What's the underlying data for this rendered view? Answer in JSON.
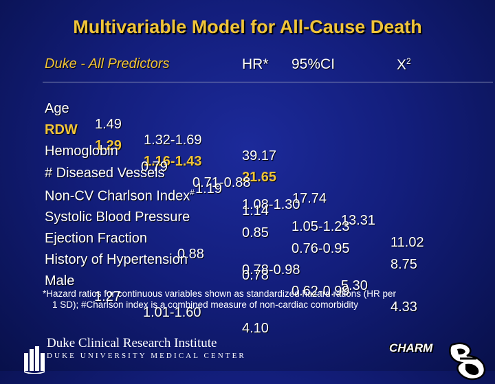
{
  "slide": {
    "title": "Multivariable Model for All-Cause Death",
    "header": {
      "label": "Duke - All Predictors",
      "hr": "HR*",
      "ci": "95%CI",
      "chi_base": "X",
      "chi_sup": "2"
    },
    "rows": [
      {
        "name": "Age",
        "hr": "1.49",
        "ci": "1.32-1.69",
        "chi2": "39.17",
        "highlight": false
      },
      {
        "name": "RDW",
        "hr": "1.29",
        "ci": "1.16-1.43",
        "chi2": "21.65",
        "highlight": true
      },
      {
        "name": "Hemoglobin",
        "hr": "0.79",
        "ci": "0.71-0.88",
        "chi2": "17.74",
        "highlight": false
      },
      {
        "name": "# Diseased Vessels",
        "hr": "1.19",
        "ci": "1.08-1.30",
        "chi2": "13.31",
        "highlight": false
      },
      {
        "name": "Non-CV Charlson Index",
        "name_sup": "#",
        "hr": "1.14",
        "ci": "1.05-1.23",
        "chi2": "11.02",
        "highlight": false
      },
      {
        "name": "Systolic Blood Pressure",
        "hr": "0.85",
        "ci": "0.76-0.95",
        "chi2": "8.75",
        "highlight": false
      },
      {
        "name": "Ejection Fraction",
        "hr": "0.88",
        "ci": "0.78-0.98",
        "chi2": "5.30",
        "highlight": false
      },
      {
        "name": "History of Hypertension",
        "hr": "0.78",
        "ci": "0.62-0.99",
        "chi2": "4.33",
        "highlight": false
      },
      {
        "name": "Male",
        "hr": "1.27",
        "ci": "1.01-1.60",
        "chi2": "4.10",
        "highlight": false
      }
    ],
    "footnote_line1": "*Hazard ratios for continuous variables shown as standardized hazard rations (HR per",
    "footnote_line2": "1 SD); #Charlson index is a combined measure of non-cardiac comorbidity"
  },
  "branding": {
    "institute_name": "Duke Clinical Research Institute",
    "institute_sub": "DUKE UNIVERSITY MEDICAL CENTER",
    "charm_logo": "CHARM",
    "logo_icon": "duke-chapel-icon",
    "emblem_icon": "charm-heart-emblem-icon"
  },
  "colors": {
    "background": "#131e7c",
    "accent_yellow": "#f0c43a",
    "text": "#ffffff"
  }
}
